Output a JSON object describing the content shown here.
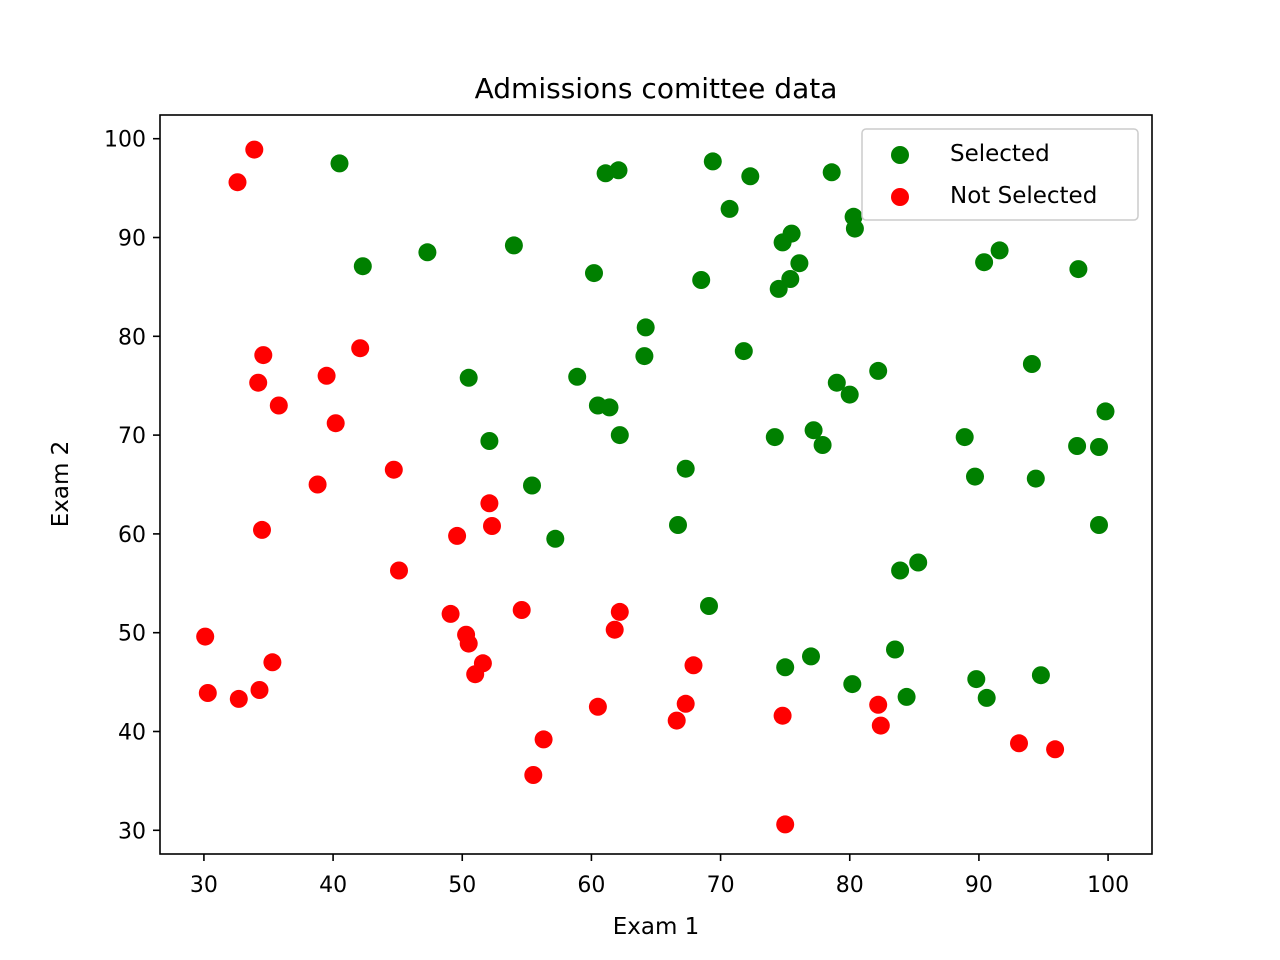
{
  "chart_data": {
    "type": "scatter",
    "title": "Admissions comittee data",
    "xlabel": "Exam 1",
    "ylabel": "Exam 2",
    "xlim": [
      26.6,
      103.4
    ],
    "ylim": [
      27.6,
      102.4
    ],
    "xticks": [
      30,
      40,
      50,
      60,
      70,
      80,
      90,
      100
    ],
    "yticks": [
      30,
      40,
      50,
      60,
      70,
      80,
      90,
      100
    ],
    "grid": false,
    "legend_position": "top-right",
    "series": [
      {
        "name": "Selected",
        "color": "#008000",
        "points": [
          [
            40.5,
            97.5
          ],
          [
            42.3,
            87.1
          ],
          [
            47.3,
            88.5
          ],
          [
            50.5,
            75.8
          ],
          [
            52.1,
            69.4
          ],
          [
            54.0,
            89.2
          ],
          [
            55.4,
            64.9
          ],
          [
            57.2,
            59.5
          ],
          [
            58.9,
            75.9
          ],
          [
            60.2,
            86.4
          ],
          [
            60.5,
            73.0
          ],
          [
            61.1,
            96.5
          ],
          [
            61.4,
            72.8
          ],
          [
            62.1,
            96.8
          ],
          [
            62.2,
            70.0
          ],
          [
            64.1,
            78.0
          ],
          [
            64.2,
            80.9
          ],
          [
            66.7,
            60.9
          ],
          [
            67.3,
            66.6
          ],
          [
            68.5,
            85.7
          ],
          [
            69.1,
            52.7
          ],
          [
            69.4,
            97.7
          ],
          [
            70.7,
            92.9
          ],
          [
            71.8,
            78.5
          ],
          [
            72.3,
            96.2
          ],
          [
            74.2,
            69.8
          ],
          [
            74.5,
            84.8
          ],
          [
            74.8,
            89.5
          ],
          [
            75.0,
            46.5
          ],
          [
            75.4,
            85.8
          ],
          [
            75.5,
            90.4
          ],
          [
            76.1,
            87.4
          ],
          [
            77.0,
            47.6
          ],
          [
            77.2,
            70.5
          ],
          [
            77.9,
            69.0
          ],
          [
            78.6,
            96.6
          ],
          [
            79.0,
            75.3
          ],
          [
            80.0,
            74.1
          ],
          [
            80.2,
            44.8
          ],
          [
            80.3,
            92.1
          ],
          [
            80.4,
            90.9
          ],
          [
            82.2,
            76.5
          ],
          [
            83.5,
            48.3
          ],
          [
            83.9,
            56.3
          ],
          [
            84.4,
            43.5
          ],
          [
            85.3,
            57.1
          ],
          [
            88.9,
            69.8
          ],
          [
            89.7,
            65.8
          ],
          [
            89.8,
            45.3
          ],
          [
            90.4,
            87.5
          ],
          [
            90.6,
            43.4
          ],
          [
            91.6,
            88.7
          ],
          [
            94.1,
            77.2
          ],
          [
            94.4,
            65.6
          ],
          [
            94.8,
            45.7
          ],
          [
            97.6,
            68.9
          ],
          [
            97.7,
            86.8
          ],
          [
            99.3,
            68.8
          ],
          [
            99.3,
            60.9
          ],
          [
            99.8,
            72.4
          ]
        ]
      },
      {
        "name": "Not Selected",
        "color": "#ff0000",
        "points": [
          [
            30.1,
            49.6
          ],
          [
            30.3,
            43.9
          ],
          [
            32.6,
            95.6
          ],
          [
            32.7,
            43.3
          ],
          [
            33.9,
            98.9
          ],
          [
            34.2,
            75.3
          ],
          [
            34.3,
            44.2
          ],
          [
            34.5,
            60.4
          ],
          [
            34.6,
            78.1
          ],
          [
            35.3,
            47.0
          ],
          [
            35.8,
            73.0
          ],
          [
            38.8,
            65.0
          ],
          [
            39.5,
            76.0
          ],
          [
            40.2,
            71.2
          ],
          [
            42.1,
            78.8
          ],
          [
            44.7,
            66.5
          ],
          [
            45.1,
            56.3
          ],
          [
            49.1,
            51.9
          ],
          [
            49.6,
            59.8
          ],
          [
            50.3,
            49.8
          ],
          [
            50.5,
            48.9
          ],
          [
            51.0,
            45.8
          ],
          [
            51.6,
            46.9
          ],
          [
            52.1,
            63.1
          ],
          [
            52.3,
            60.8
          ],
          [
            54.6,
            52.3
          ],
          [
            55.5,
            35.6
          ],
          [
            56.3,
            39.2
          ],
          [
            60.5,
            42.5
          ],
          [
            61.8,
            50.3
          ],
          [
            62.2,
            52.1
          ],
          [
            66.6,
            41.1
          ],
          [
            67.3,
            42.8
          ],
          [
            67.9,
            46.7
          ],
          [
            74.8,
            41.6
          ],
          [
            75.0,
            30.6
          ],
          [
            82.2,
            42.7
          ],
          [
            82.4,
            40.6
          ],
          [
            93.1,
            38.8
          ],
          [
            95.9,
            38.2
          ]
        ]
      }
    ]
  }
}
